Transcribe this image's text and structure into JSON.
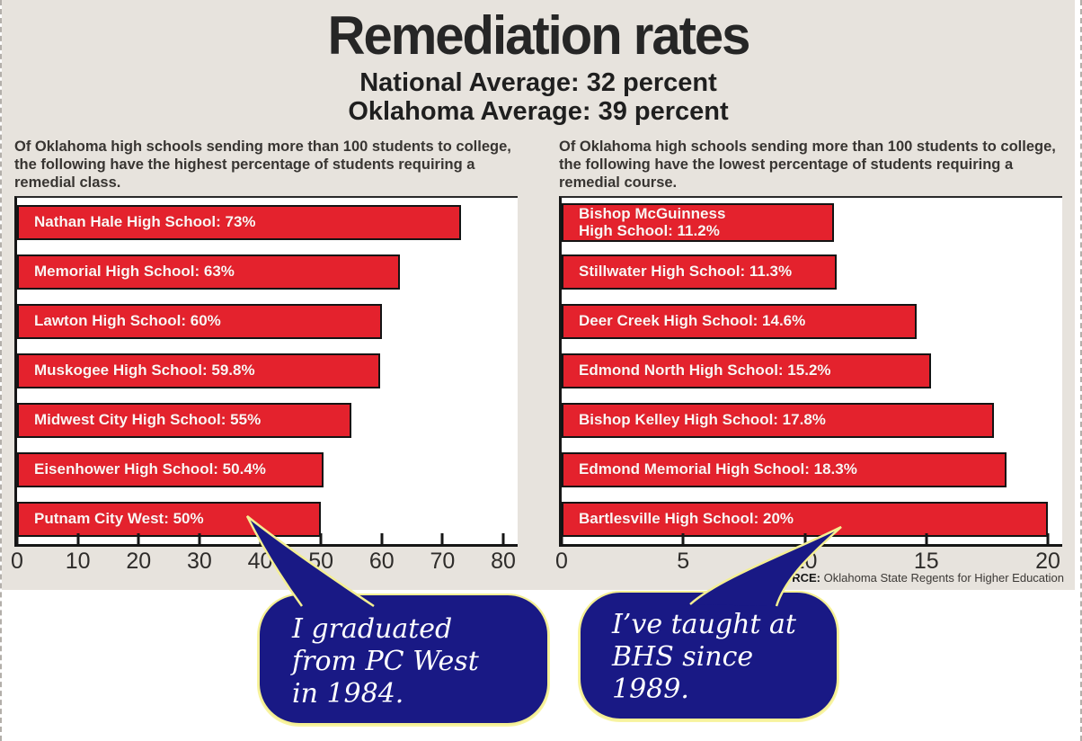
{
  "page": {
    "title": "Remediation rates",
    "subtitle_lines": [
      "National Average: 32 percent",
      "Oklahoma Average: 39 percent"
    ],
    "source_label": "SOURCE:",
    "source_text": " Oklahoma State Regents for Higher Education"
  },
  "colors": {
    "background_panel": "#e7e3dd",
    "bar_red": "#e4222d",
    "bar_border": "#141414",
    "bubble_navy": "#191985",
    "bubble_outline_yellow": "#f4ef92",
    "text_dark": "#262626"
  },
  "chart_data": [
    {
      "type": "bar",
      "orientation": "horizontal",
      "description": "Of Oklahoma high schools sending more than 100 students to college,\nthe following have the highest percentage of students requiring a\nremedial class.",
      "categories": [
        "Nathan Hale High School",
        "Memorial High School",
        "Lawton High School",
        "Muskogee High School",
        "Midwest City High School",
        "Eisenhower High School",
        "Putnam City West"
      ],
      "values": [
        73,
        63,
        60,
        59.8,
        55,
        50.4,
        50
      ],
      "bar_labels": [
        "Nathan Hale High School: 73%",
        "Memorial High School: 63%",
        "Lawton High School: 60%",
        "Muskogee High School: 59.8%",
        "Midwest City High School: 55%",
        "Eisenhower High School: 50.4%",
        "Putnam City West: 50%"
      ],
      "xlim": [
        0,
        80
      ],
      "ticks": [
        0,
        10,
        20,
        30,
        40,
        50,
        60,
        70,
        80
      ],
      "grid": false,
      "legend": false
    },
    {
      "type": "bar",
      "orientation": "horizontal",
      "description": "Of Oklahoma high schools sending more than 100 students to college,\nthe following have the lowest percentage of students requiring a\nremedial course.",
      "categories": [
        "Bishop McGuinness High School",
        "Stillwater High School",
        "Deer Creek High School",
        "Edmond North High School",
        "Bishop Kelley High School",
        "Edmond Memorial High School",
        "Bartlesville High School"
      ],
      "values": [
        11.2,
        11.3,
        14.6,
        15.2,
        17.8,
        18.3,
        20
      ],
      "bar_labels": [
        "Bishop McGuinness\nHigh School: 11.2%",
        "Stillwater High School: 11.3%",
        "Deer Creek High School: 14.6%",
        "Edmond North High School: 15.2%",
        "Bishop Kelley High School: 17.8%",
        "Edmond Memorial High School: 18.3%",
        "Bartlesville High School: 20%"
      ],
      "xlim": [
        0,
        20
      ],
      "ticks": [
        0,
        5,
        10,
        15,
        20
      ],
      "grid": false,
      "legend": false
    }
  ],
  "annotations": [
    {
      "text": "I graduated\nfrom PC West\nin 1984.",
      "points_to": "Putnam City West bar"
    },
    {
      "text": "I’ve taught at\nBHS since\n1989.",
      "points_to": "Bartlesville High School bar"
    }
  ]
}
